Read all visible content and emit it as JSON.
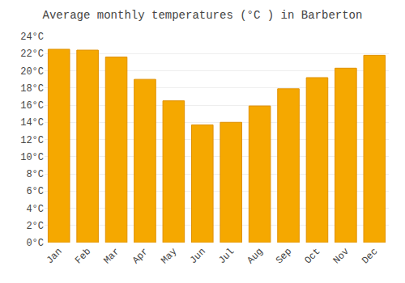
{
  "chart_data": {
    "type": "bar",
    "title": "Average monthly temperatures (°C ) in Barberton",
    "categories": [
      "Jan",
      "Feb",
      "Mar",
      "Apr",
      "May",
      "Jun",
      "Jul",
      "Aug",
      "Sep",
      "Oct",
      "Nov",
      "Dec"
    ],
    "values": [
      22.5,
      22.4,
      21.6,
      19.0,
      16.5,
      13.7,
      14.0,
      15.9,
      17.9,
      19.2,
      20.3,
      21.8
    ],
    "color": "#F5A800",
    "ylim": [
      0,
      24
    ],
    "yticks": [
      {
        "value": 0,
        "label": "0°C"
      },
      {
        "value": 2,
        "label": "2°C"
      },
      {
        "value": 4,
        "label": "4°C"
      },
      {
        "value": 6,
        "label": "6°C"
      },
      {
        "value": 8,
        "label": "8°C"
      },
      {
        "value": 10,
        "label": "10°C"
      },
      {
        "value": 12,
        "label": "12°C"
      },
      {
        "value": 14,
        "label": "14°C"
      },
      {
        "value": 16,
        "label": "16°C"
      },
      {
        "value": 18,
        "label": "18°C"
      },
      {
        "value": 20,
        "label": "20°C"
      },
      {
        "value": 22,
        "label": "22°C"
      },
      {
        "value": 24,
        "label": "24°C"
      }
    ],
    "grid": true
  }
}
